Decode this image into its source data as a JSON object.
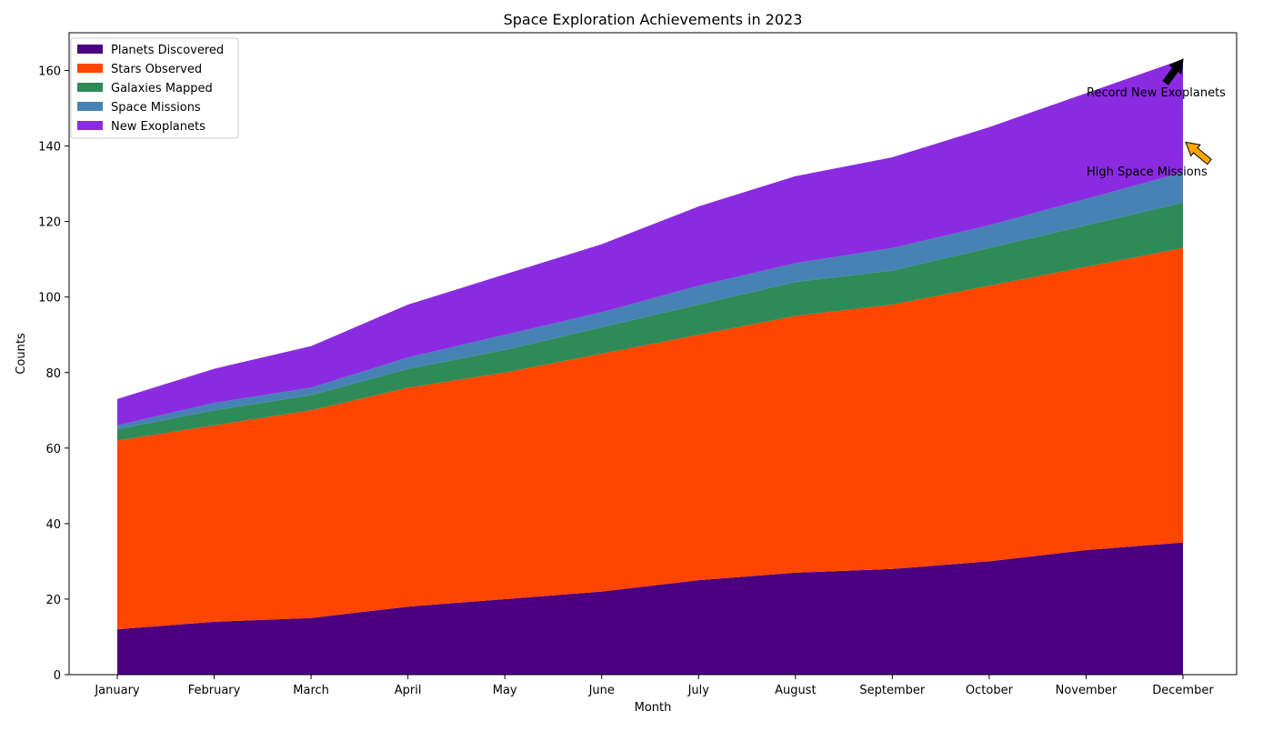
{
  "chart_data": {
    "type": "area",
    "stacked": true,
    "title": "Space Exploration Achievements in 2023",
    "xlabel": "Month",
    "ylabel": "Counts",
    "ylim": [
      0,
      170
    ],
    "yticks": [
      0,
      20,
      40,
      60,
      80,
      100,
      120,
      140,
      160
    ],
    "categories": [
      "January",
      "February",
      "March",
      "April",
      "May",
      "June",
      "July",
      "August",
      "September",
      "October",
      "November",
      "December"
    ],
    "series": [
      {
        "name": "Planets Discovered",
        "color": "#4b0082",
        "values": [
          12,
          14,
          15,
          18,
          20,
          22,
          25,
          27,
          28,
          30,
          33,
          35
        ]
      },
      {
        "name": "Stars Observed",
        "color": "#ff4500",
        "values": [
          50,
          52,
          55,
          58,
          60,
          63,
          65,
          68,
          70,
          73,
          75,
          78
        ]
      },
      {
        "name": "Galaxies Mapped",
        "color": "#2e8b57",
        "values": [
          3,
          4,
          4,
          5,
          6,
          7,
          8,
          9,
          9,
          10,
          11,
          12
        ]
      },
      {
        "name": "Space Missions",
        "color": "#4682b4",
        "values": [
          1,
          2,
          2,
          3,
          4,
          4,
          5,
          5,
          6,
          6,
          7,
          8
        ]
      },
      {
        "name": "New Exoplanets",
        "color": "#8a2be2",
        "values": [
          7,
          9,
          11,
          14,
          16,
          18,
          21,
          23,
          24,
          26,
          28,
          30
        ]
      }
    ],
    "legend_position": "top-left",
    "grid": false,
    "annotations": [
      {
        "text": "Record New Exoplanets",
        "x": "December",
        "y": 163,
        "arrow_color": "#000000"
      },
      {
        "text": "High Space Missions",
        "x": "December",
        "y": 141,
        "arrow_color": "#ffa500"
      }
    ]
  }
}
